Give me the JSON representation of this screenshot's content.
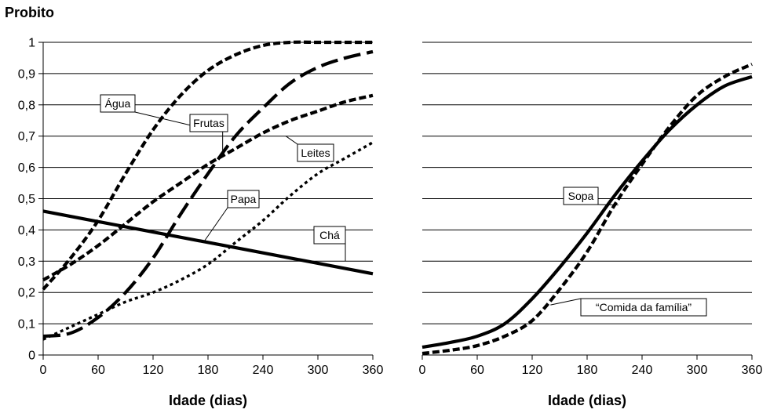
{
  "chart_data": [
    {
      "type": "line",
      "ylabel": "Probito",
      "xlabel": "Idade (dias)",
      "xlim": [
        0,
        360
      ],
      "ylim": [
        0,
        1
      ],
      "xticks": [
        0,
        60,
        120,
        180,
        240,
        300,
        360
      ],
      "xtick_labels": [
        "0",
        "60",
        "120",
        "180",
        "240",
        "300",
        "360"
      ],
      "yticks": [
        0,
        0.1,
        0.2,
        0.3,
        0.4,
        0.5,
        0.6,
        0.7,
        0.8,
        0.9,
        1
      ],
      "ytick_labels": [
        "0",
        "0,1",
        "0,2",
        "0,3",
        "0,4",
        "0,5",
        "0,6",
        "0,7",
        "0,8",
        "0,9",
        "1"
      ],
      "grid": "horizontal",
      "series": [
        {
          "name": "Água",
          "style": "dash",
          "color": "#000000",
          "x": [
            0,
            30,
            60,
            90,
            120,
            150,
            180,
            210,
            240,
            270,
            300,
            330,
            360
          ],
          "y": [
            0.21,
            0.31,
            0.43,
            0.58,
            0.72,
            0.83,
            0.91,
            0.96,
            0.99,
            1.0,
            1.0,
            1.0,
            1.0
          ]
        },
        {
          "name": "Frutas",
          "style": "longdash",
          "color": "#000000",
          "x": [
            0,
            30,
            60,
            90,
            120,
            150,
            180,
            210,
            240,
            270,
            300,
            330,
            360
          ],
          "y": [
            0.06,
            0.07,
            0.12,
            0.2,
            0.31,
            0.45,
            0.58,
            0.7,
            0.79,
            0.87,
            0.92,
            0.95,
            0.97
          ]
        },
        {
          "name": "Leites",
          "style": "dash",
          "color": "#000000",
          "x": [
            0,
            30,
            60,
            90,
            120,
            150,
            180,
            210,
            240,
            270,
            300,
            330,
            360
          ],
          "y": [
            0.24,
            0.29,
            0.35,
            0.42,
            0.49,
            0.55,
            0.61,
            0.66,
            0.71,
            0.75,
            0.78,
            0.81,
            0.83
          ]
        },
        {
          "name": "Papa",
          "style": "dot",
          "color": "#000000",
          "x": [
            0,
            30,
            60,
            90,
            120,
            150,
            180,
            210,
            240,
            270,
            300,
            330,
            360
          ],
          "y": [
            0.05,
            0.09,
            0.13,
            0.17,
            0.2,
            0.24,
            0.29,
            0.36,
            0.43,
            0.51,
            0.58,
            0.63,
            0.68
          ]
        },
        {
          "name": "Chá",
          "style": "solid",
          "color": "#000000",
          "x": [
            0,
            360
          ],
          "y": [
            0.46,
            0.26
          ]
        }
      ],
      "annotations": [
        {
          "text": "Água",
          "series": "Água"
        },
        {
          "text": "Frutas",
          "series": "Frutas"
        },
        {
          "text": "Leites",
          "series": "Leites"
        },
        {
          "text": "Papa",
          "series": "Papa"
        },
        {
          "text": "Chá",
          "series": "Chá"
        }
      ]
    },
    {
      "type": "line",
      "xlabel": "Idade (dias)",
      "xlim": [
        0,
        360
      ],
      "ylim": [
        0,
        1
      ],
      "xticks": [
        0,
        60,
        120,
        180,
        240,
        300,
        360
      ],
      "xtick_labels": [
        "0",
        "60",
        "120",
        "180",
        "240",
        "300",
        "360"
      ],
      "yticks": [
        0,
        0.1,
        0.2,
        0.3,
        0.4,
        0.5,
        0.6,
        0.7,
        0.8,
        0.9,
        1
      ],
      "grid": "horizontal",
      "series": [
        {
          "name": "Sopa",
          "style": "solid",
          "color": "#000000",
          "x": [
            0,
            30,
            60,
            90,
            120,
            150,
            180,
            210,
            240,
            270,
            300,
            330,
            360
          ],
          "y": [
            0.025,
            0.04,
            0.06,
            0.1,
            0.18,
            0.28,
            0.39,
            0.51,
            0.62,
            0.72,
            0.8,
            0.86,
            0.89
          ]
        },
        {
          "name": "“Comida da família”",
          "style": "dash",
          "color": "#000000",
          "x": [
            0,
            30,
            60,
            90,
            120,
            150,
            180,
            210,
            240,
            270,
            300,
            330,
            360
          ],
          "y": [
            0.005,
            0.015,
            0.03,
            0.06,
            0.11,
            0.21,
            0.33,
            0.48,
            0.61,
            0.73,
            0.83,
            0.89,
            0.93
          ]
        }
      ],
      "annotations": [
        {
          "text": "Sopa",
          "series": "Sopa"
        },
        {
          "text": "“Comida da família”",
          "series": "“Comida da família”"
        }
      ]
    }
  ]
}
